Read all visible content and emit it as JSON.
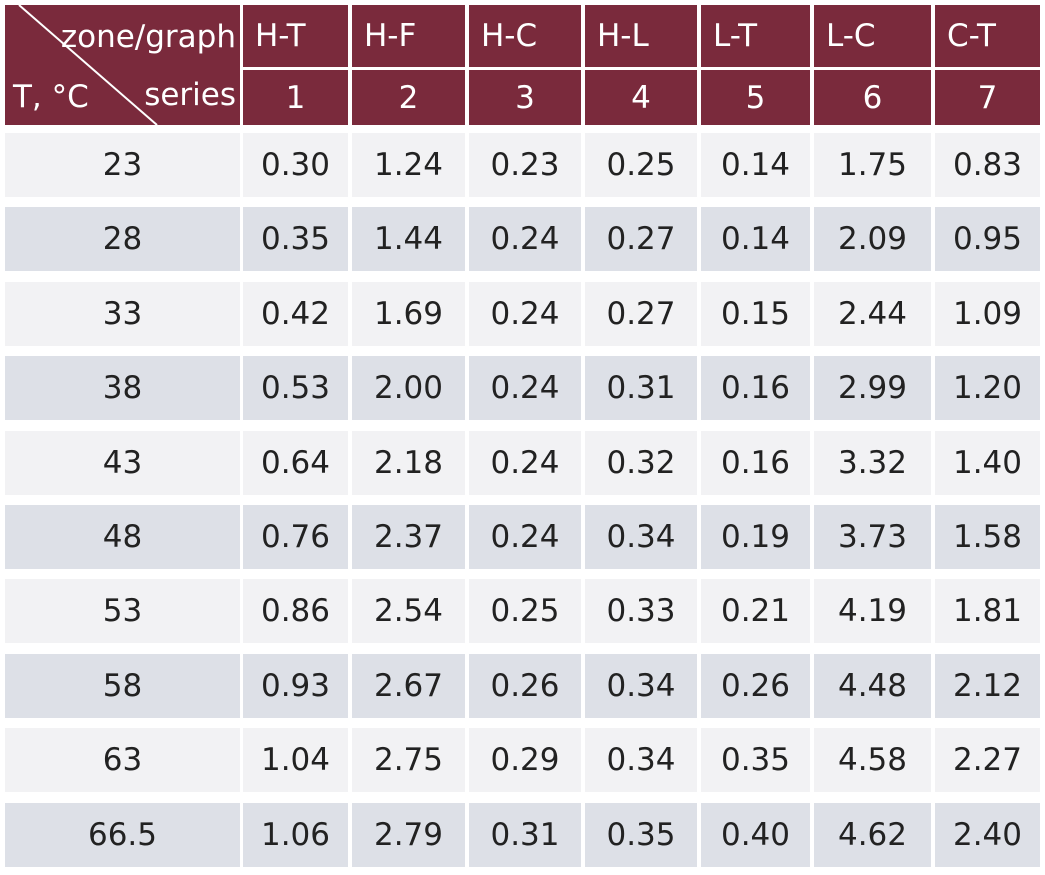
{
  "header": {
    "corner": {
      "top": "zone/graph",
      "bottom_left": "T, °C",
      "bottom_right": "series"
    },
    "zones": [
      "H-T",
      "H-F",
      "H-C",
      "H-L",
      "L-T",
      "L-C",
      "C-T"
    ],
    "series": [
      "1",
      "2",
      "3",
      "4",
      "5",
      "6",
      "7"
    ]
  },
  "table": {
    "rows": [
      [
        "23",
        "0.30",
        "1.24",
        "0.23",
        "0.25",
        "0.14",
        "1.75",
        "0.83"
      ],
      [
        "28",
        "0.35",
        "1.44",
        "0.24",
        "0.27",
        "0.14",
        "2.09",
        "0.95"
      ],
      [
        "33",
        "0.42",
        "1.69",
        "0.24",
        "0.27",
        "0.15",
        "2.44",
        "1.09"
      ],
      [
        "38",
        "0.53",
        "2.00",
        "0.24",
        "0.31",
        "0.16",
        "2.99",
        "1.20"
      ],
      [
        "43",
        "0.64",
        "2.18",
        "0.24",
        "0.32",
        "0.16",
        "3.32",
        "1.40"
      ],
      [
        "48",
        "0.76",
        "2.37",
        "0.24",
        "0.34",
        "0.19",
        "3.73",
        "1.58"
      ],
      [
        "53",
        "0.86",
        "2.54",
        "0.25",
        "0.33",
        "0.21",
        "4.19",
        "1.81"
      ],
      [
        "58",
        "0.93",
        "2.67",
        "0.26",
        "0.34",
        "0.26",
        "4.48",
        "2.12"
      ],
      [
        "63",
        "1.04",
        "2.75",
        "0.29",
        "0.34",
        "0.35",
        "4.58",
        "2.27"
      ],
      [
        "66.5",
        "1.06",
        "2.79",
        "0.31",
        "0.35",
        "0.40",
        "4.62",
        "2.40"
      ]
    ]
  }
}
